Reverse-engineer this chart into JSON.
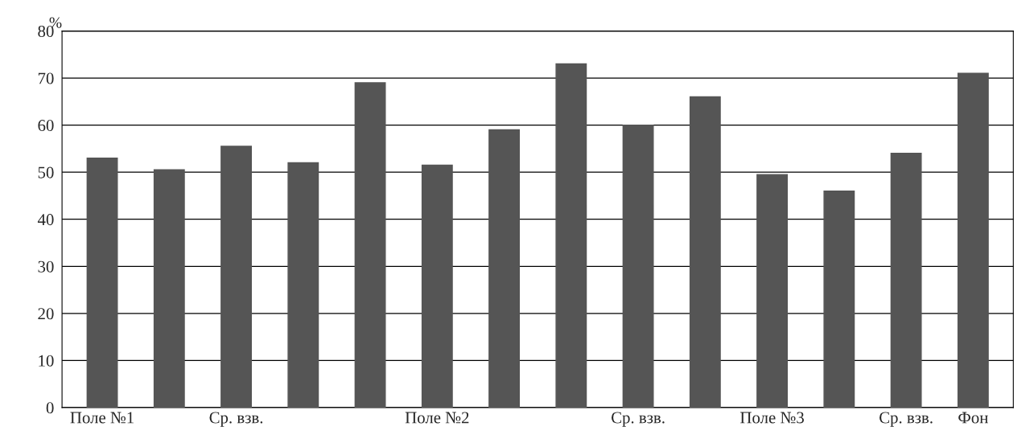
{
  "chart_data": {
    "type": "bar",
    "ylabel": "%",
    "categories": [
      "Поле №1",
      null,
      "Ср. взв.",
      null,
      null,
      "Поле №2",
      null,
      null,
      "Ср. взв.",
      null,
      "Поле №3",
      null,
      "Ср. взв.",
      "Фон"
    ],
    "values": [
      53,
      50.5,
      55.5,
      52,
      69,
      51.5,
      59,
      73,
      60,
      66,
      49.5,
      46,
      54,
      71
    ],
    "color": "#555555",
    "ylim": [
      0,
      80
    ],
    "yticks": [
      0,
      10,
      20,
      30,
      40,
      50,
      60,
      70,
      80
    ],
    "grid": "y"
  }
}
